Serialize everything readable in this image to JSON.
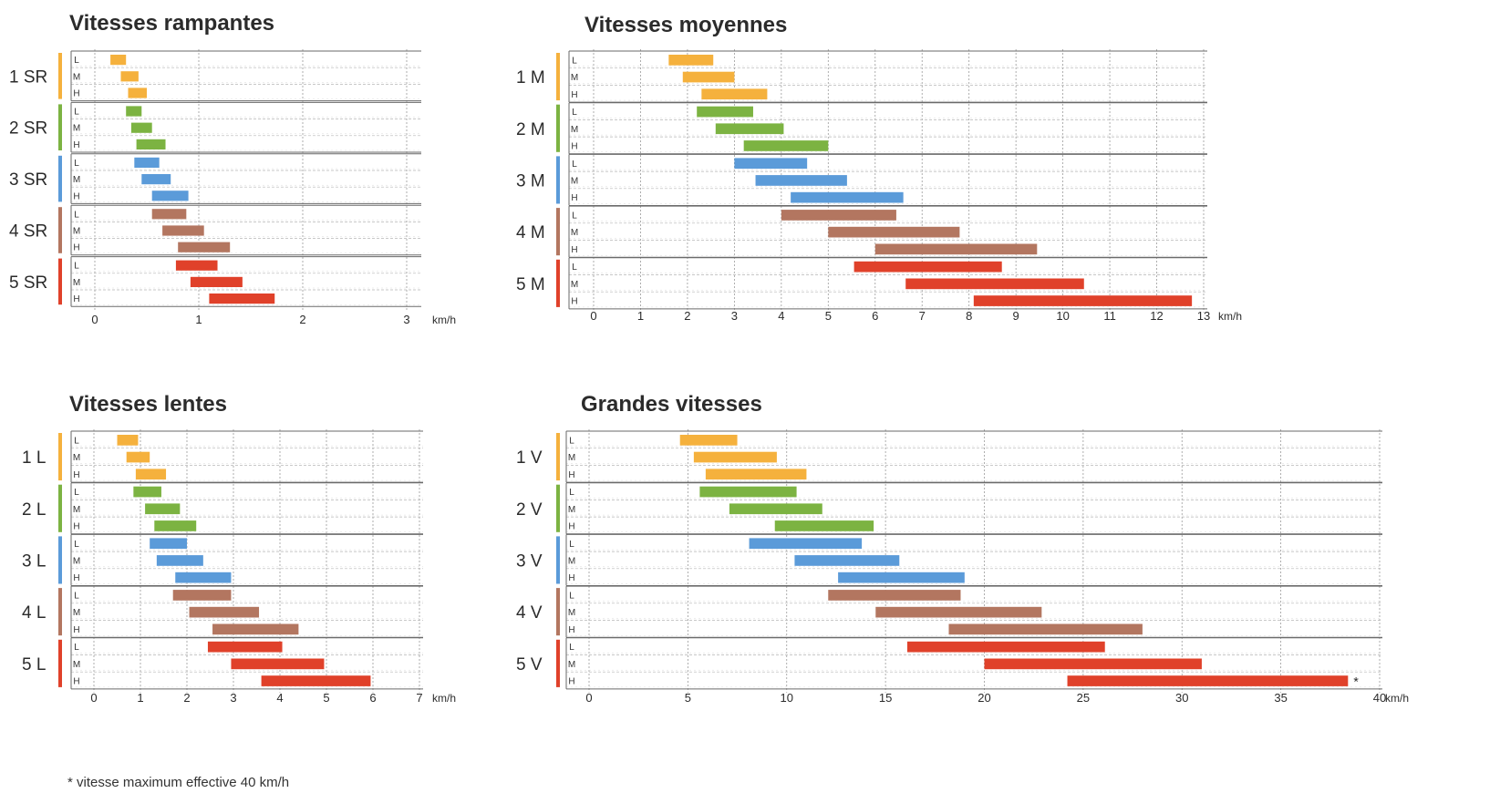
{
  "speed_levels": [
    "L",
    "M",
    "H"
  ],
  "unit": "km/h",
  "colors": [
    "#f5b13d",
    "#7cb342",
    "#5b9bd9",
    "#b37660",
    "#e0412a"
  ],
  "footnote": "* vitesse maximum effective 40 km/h",
  "chart_data": [
    {
      "type": "bar",
      "title": "Vitesses rampantes",
      "xlim": [
        0,
        3
      ],
      "xticks": [
        0,
        1,
        2,
        3
      ],
      "xlabel": "km/h",
      "groups": [
        {
          "name": "1 SR",
          "ranges": [
            [
              0.15,
              0.3
            ],
            [
              0.25,
              0.42
            ],
            [
              0.32,
              0.5
            ]
          ]
        },
        {
          "name": "2 SR",
          "ranges": [
            [
              0.3,
              0.45
            ],
            [
              0.35,
              0.55
            ],
            [
              0.4,
              0.68
            ]
          ]
        },
        {
          "name": "3 SR",
          "ranges": [
            [
              0.38,
              0.62
            ],
            [
              0.45,
              0.73
            ],
            [
              0.55,
              0.9
            ]
          ]
        },
        {
          "name": "4 SR",
          "ranges": [
            [
              0.55,
              0.88
            ],
            [
              0.65,
              1.05
            ],
            [
              0.8,
              1.3
            ]
          ]
        },
        {
          "name": "5 SR",
          "ranges": [
            [
              0.78,
              1.18
            ],
            [
              0.92,
              1.42
            ],
            [
              1.1,
              1.73
            ]
          ]
        }
      ]
    },
    {
      "type": "bar",
      "title": "Vitesses moyennes",
      "xlim": [
        0,
        13
      ],
      "xticks": [
        0,
        1,
        2,
        3,
        4,
        5,
        6,
        7,
        8,
        9,
        10,
        11,
        12,
        13
      ],
      "xlabel": "km/h",
      "groups": [
        {
          "name": "1 M",
          "ranges": [
            [
              1.6,
              2.55
            ],
            [
              1.9,
              3.0
            ],
            [
              2.3,
              3.7
            ]
          ]
        },
        {
          "name": "2 M",
          "ranges": [
            [
              2.2,
              3.4
            ],
            [
              2.6,
              4.05
            ],
            [
              3.2,
              5.0
            ]
          ]
        },
        {
          "name": "3 M",
          "ranges": [
            [
              3.0,
              4.55
            ],
            [
              3.45,
              5.4
            ],
            [
              4.2,
              6.6
            ]
          ]
        },
        {
          "name": "4 M",
          "ranges": [
            [
              4.0,
              6.45
            ],
            [
              5.0,
              7.8
            ],
            [
              6.0,
              9.45
            ]
          ]
        },
        {
          "name": "5 M",
          "ranges": [
            [
              5.55,
              8.7
            ],
            [
              6.65,
              10.45
            ],
            [
              8.1,
              12.75
            ]
          ]
        }
      ]
    },
    {
      "type": "bar",
      "title": "Vitesses lentes",
      "xlim": [
        0,
        7
      ],
      "xticks": [
        0,
        1,
        2,
        3,
        4,
        5,
        6,
        7
      ],
      "xlabel": "km/h",
      "groups": [
        {
          "name": "1 L",
          "ranges": [
            [
              0.5,
              0.95
            ],
            [
              0.7,
              1.2
            ],
            [
              0.9,
              1.55
            ]
          ]
        },
        {
          "name": "2 L",
          "ranges": [
            [
              0.85,
              1.45
            ],
            [
              1.1,
              1.85
            ],
            [
              1.3,
              2.2
            ]
          ]
        },
        {
          "name": "3 L",
          "ranges": [
            [
              1.2,
              2.0
            ],
            [
              1.35,
              2.35
            ],
            [
              1.75,
              2.95
            ]
          ]
        },
        {
          "name": "4 L",
          "ranges": [
            [
              1.7,
              2.95
            ],
            [
              2.05,
              3.55
            ],
            [
              2.55,
              4.4
            ]
          ]
        },
        {
          "name": "5 L",
          "ranges": [
            [
              2.45,
              4.05
            ],
            [
              2.95,
              4.95
            ],
            [
              3.6,
              5.95
            ]
          ]
        }
      ]
    },
    {
      "type": "bar",
      "title": "Grandes vitesses",
      "xlim": [
        0,
        40
      ],
      "xticks": [
        0,
        5,
        10,
        15,
        20,
        25,
        30,
        35,
        40
      ],
      "xlabel": "km/h",
      "annotation": "*",
      "groups": [
        {
          "name": "1 V",
          "ranges": [
            [
              4.6,
              7.5
            ],
            [
              5.3,
              9.5
            ],
            [
              5.9,
              11.0
            ]
          ]
        },
        {
          "name": "2 V",
          "ranges": [
            [
              5.6,
              10.5
            ],
            [
              7.1,
              11.8
            ],
            [
              9.4,
              14.4
            ]
          ]
        },
        {
          "name": "3 V",
          "ranges": [
            [
              8.1,
              13.8
            ],
            [
              10.4,
              15.7
            ],
            [
              12.6,
              19.0
            ]
          ]
        },
        {
          "name": "4 V",
          "ranges": [
            [
              12.1,
              18.8
            ],
            [
              14.5,
              22.9
            ],
            [
              18.2,
              28.0
            ]
          ]
        },
        {
          "name": "5 V",
          "ranges": [
            [
              16.1,
              26.1
            ],
            [
              20.0,
              31.0
            ],
            [
              24.2,
              38.4
            ]
          ]
        }
      ]
    }
  ]
}
